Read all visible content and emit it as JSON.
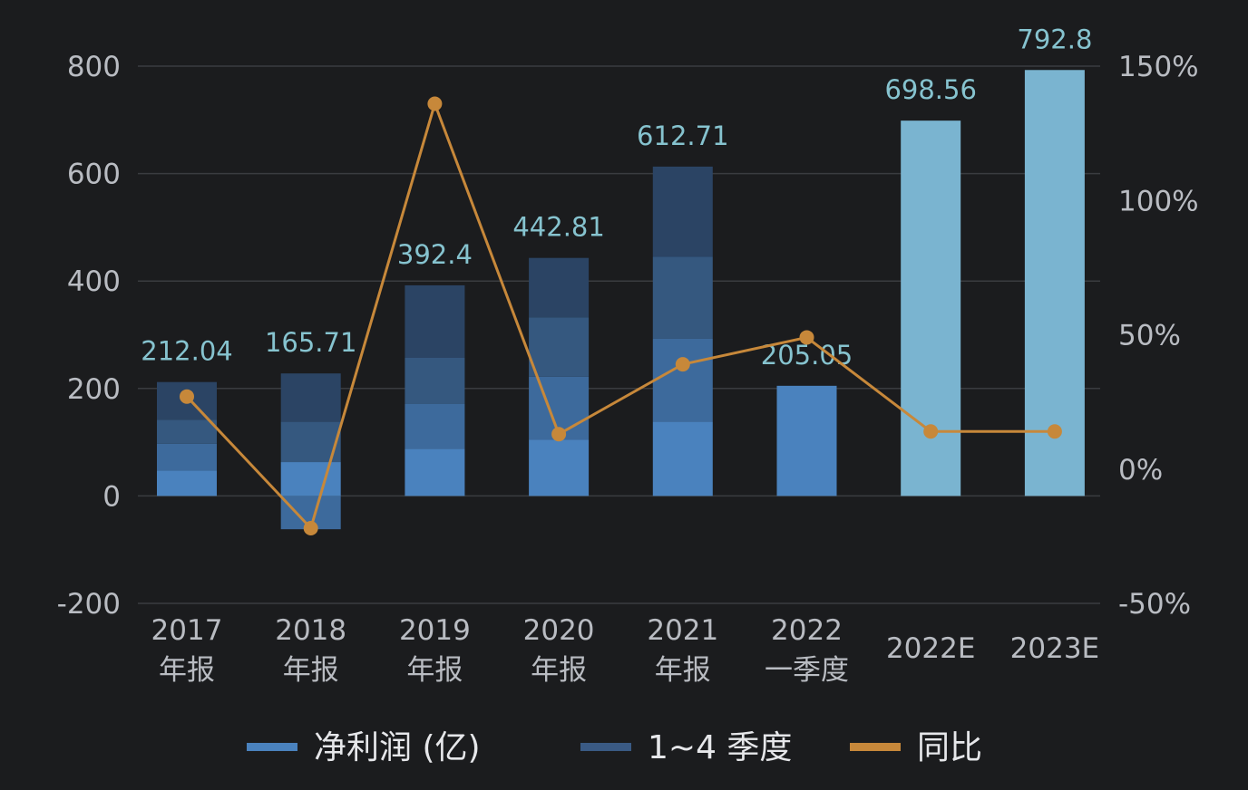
{
  "chart_data": {
    "type": "bar",
    "categories": [
      [
        "2017",
        "年报"
      ],
      [
        "2018",
        "年报"
      ],
      [
        "2019",
        "年报"
      ],
      [
        "2020",
        "年报"
      ],
      [
        "2021",
        "年报"
      ],
      [
        "2022",
        "一季度"
      ],
      [
        "2022E"
      ],
      [
        "2023E"
      ]
    ],
    "y_left": {
      "ticks": [
        "800",
        "600",
        "400",
        "200",
        "0",
        "-200"
      ],
      "ylim": [
        -200,
        800
      ]
    },
    "y_right": {
      "ticks": [
        "150%",
        "100%",
        "50%",
        "0%",
        "-50%"
      ],
      "ylim": [
        -50,
        150
      ]
    },
    "bar_labels": [
      "212.04",
      "165.71",
      "392.4",
      "442.81",
      "612.71",
      "205.05",
      "698.56",
      "792.8"
    ],
    "quarterly_stacks": [
      [
        47,
        50,
        45,
        70
      ],
      [
        63,
        -62,
        75,
        90
      ],
      [
        88,
        83,
        86,
        135
      ],
      [
        105,
        117,
        110,
        111
      ],
      [
        138,
        155,
        152,
        168
      ],
      [
        205
      ],
      [],
      []
    ],
    "forecast_values": [
      null,
      null,
      null,
      null,
      null,
      null,
      698.56,
      792.8
    ],
    "yoy_percent": [
      27,
      -22,
      136,
      13,
      39,
      49,
      14,
      14
    ],
    "grid": true,
    "legend_position": "bottom",
    "series": [
      {
        "name": "净利润 (亿)",
        "color": "#4a82be"
      },
      {
        "name": "1~4 季度",
        "color": "#3a5a84"
      },
      {
        "name": "同比",
        "color": "#c7883a"
      }
    ],
    "colors": {
      "q1": "#4a82be",
      "q2": "#3d6a9c",
      "q3": "#35587f",
      "q4": "#2b4464",
      "forecast": "#7ab4d0",
      "line": "#c7883a",
      "grid": "#3a3c40"
    }
  }
}
